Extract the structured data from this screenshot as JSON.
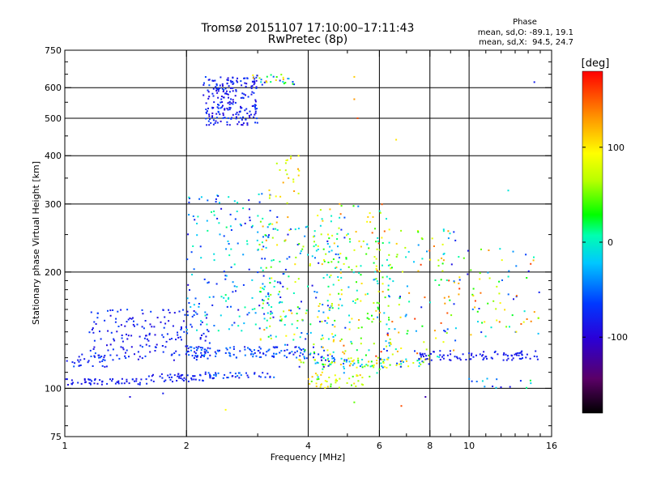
{
  "chart_data": {
    "type": "scatter",
    "title": "Tromsø 20151107 17:10:00–17:11:43",
    "subtitle": "RwPretec (8p)",
    "xlabel": "Frequency [MHz]",
    "ylabel": "Stationary phase Virtual Height [km]",
    "x_scale": "log",
    "y_scale": "log",
    "xlim": [
      1,
      16
    ],
    "ylim": [
      75,
      750
    ],
    "x_ticks": [
      1,
      2,
      4,
      6,
      8,
      10,
      16
    ],
    "y_ticks": [
      75,
      100,
      200,
      300,
      400,
      500,
      600,
      750
    ],
    "x_tick_labels": [
      "1",
      "2",
      "4",
      "6",
      "8",
      "10",
      "16"
    ],
    "y_tick_labels": [
      "75",
      "100",
      "200",
      "300",
      "400",
      "500",
      "600",
      "750"
    ],
    "grid": true,
    "phase_info": {
      "heading": "Phase",
      "line_o": "mean, sd,O: -89.1, 19.1",
      "line_x": "mean, sd,X:  94.5, 24.7"
    },
    "colorbar": {
      "label": "[deg]",
      "range": [
        -180,
        180
      ],
      "ticks": [
        100,
        0,
        -100
      ],
      "tick_labels": [
        "100",
        "0",
        "-100"
      ],
      "colormap": "rainbow (black-purple-blue-cyan-green-yellow-orange-red)"
    },
    "series_description": "ionogram echo traces; point colour encodes phase in degrees",
    "clusters": [
      {
        "f": [
          1.0,
          1.6
        ],
        "h": [
          102,
          106
        ],
        "phase": [
          -110,
          -90
        ],
        "n": 55
      },
      {
        "f": [
          1.6,
          2.2
        ],
        "h": [
          104,
          109
        ],
        "phase": [
          -110,
          -85
        ],
        "n": 45
      },
      {
        "f": [
          2.2,
          3.3
        ],
        "h": [
          106,
          110
        ],
        "phase": [
          -110,
          -60
        ],
        "n": 45
      },
      {
        "f": [
          1.0,
          1.3
        ],
        "h": [
          112,
          125
        ],
        "phase": [
          -110,
          -70
        ],
        "n": 30
      },
      {
        "f": [
          1.15,
          2.3
        ],
        "h": [
          118,
          160
        ],
        "phase": [
          -115,
          -75
        ],
        "n": 180
      },
      {
        "f": [
          2.0,
          4.5
        ],
        "h": [
          120,
          128
        ],
        "phase": [
          -115,
          -60
        ],
        "n": 120
      },
      {
        "f": [
          3.8,
          8.0
        ],
        "h": [
          113,
          120
        ],
        "phase": [
          -110,
          130
        ],
        "n": 110
      },
      {
        "f": [
          7.5,
          15.0
        ],
        "h": [
          118,
          125
        ],
        "phase": [
          -110,
          -90
        ],
        "n": 90
      },
      {
        "f": [
          2.2,
          3.0
        ],
        "h": [
          480,
          640
        ],
        "phase": [
          -120,
          -75
        ],
        "n": 220
      },
      {
        "f": [
          2.9,
          3.7
        ],
        "h": [
          610,
          650
        ],
        "phase": [
          -110,
          150
        ],
        "n": 30
      },
      {
        "f": [
          2.0,
          3.3
        ],
        "h": [
          140,
          320
        ],
        "phase": [
          -115,
          10
        ],
        "n": 170
      },
      {
        "f": [
          3.0,
          5.0
        ],
        "h": [
          120,
          280
        ],
        "phase": [
          -110,
          140
        ],
        "n": 220
      },
      {
        "f": [
          4.2,
          6.5
        ],
        "h": [
          105,
          300
        ],
        "phase": [
          -60,
          160
        ],
        "n": 170
      },
      {
        "f": [
          5.8,
          9.5
        ],
        "h": [
          120,
          260
        ],
        "phase": [
          -110,
          170
        ],
        "n": 120
      },
      {
        "f": [
          8.5,
          15.0
        ],
        "h": [
          130,
          230
        ],
        "phase": [
          -110,
          170
        ],
        "n": 80
      },
      {
        "f": [
          3.2,
          3.8
        ],
        "h": [
          300,
          400
        ],
        "phase": [
          60,
          140
        ],
        "n": 25
      },
      {
        "f": [
          4.0,
          5.5
        ],
        "h": [
          100,
          110
        ],
        "phase": [
          30,
          130
        ],
        "n": 40
      },
      {
        "f": [
          10.0,
          14.5
        ],
        "h": [
          100,
          106
        ],
        "phase": [
          -110,
          20
        ],
        "n": 15
      }
    ],
    "isolated_points": [
      {
        "f": 5.2,
        "h": 640,
        "phase": 120
      },
      {
        "f": 5.2,
        "h": 560,
        "phase": 140
      },
      {
        "f": 5.3,
        "h": 500,
        "phase": 160
      },
      {
        "f": 14.5,
        "h": 620,
        "phase": -100
      },
      {
        "f": 12.5,
        "h": 325,
        "phase": -20
      },
      {
        "f": 6.6,
        "h": 440,
        "phase": 110
      },
      {
        "f": 2.5,
        "h": 88,
        "phase": 100
      },
      {
        "f": 6.8,
        "h": 90,
        "phase": 160
      },
      {
        "f": 5.2,
        "h": 92,
        "phase": 40
      },
      {
        "f": 7.8,
        "h": 95,
        "phase": -130
      },
      {
        "f": 1.45,
        "h": 95,
        "phase": -110
      },
      {
        "f": 1.75,
        "h": 97,
        "phase": -100
      }
    ]
  }
}
